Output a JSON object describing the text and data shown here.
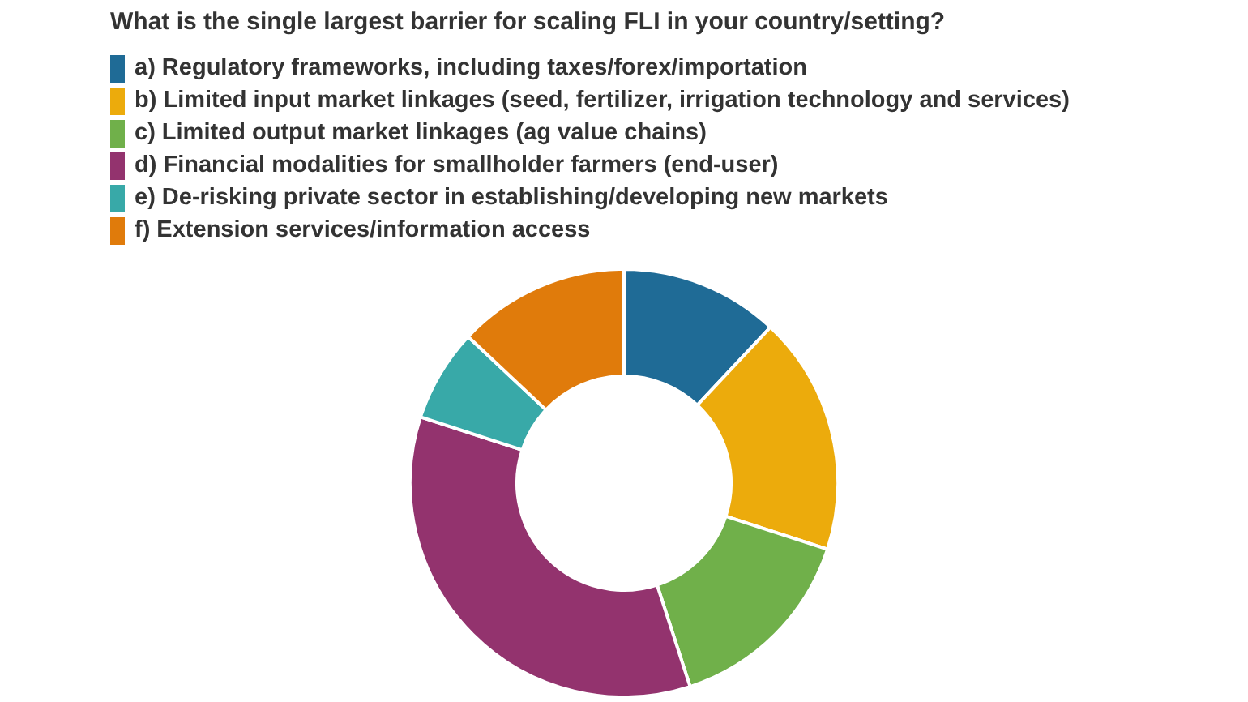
{
  "chart_data": {
    "type": "donut",
    "title": "What is the single largest barrier for scaling FLI in your country/setting?",
    "categories": [
      "a) Regulatory frameworks, including taxes/forex/importation",
      "b) Limited input market linkages (seed, fertilizer, irrigation technology and services)",
      "c) Limited output market linkages (ag value chains)",
      "d) Financial modalities for smallholder farmers (end-user)",
      "e) De-risking private sector in establishing/developing new markets",
      "f) Extension services/information access"
    ],
    "values": [
      12,
      18,
      15,
      35,
      7,
      13
    ],
    "colors": [
      "#1f6b96",
      "#ecab0c",
      "#70b04a",
      "#93336e",
      "#38a9a8",
      "#e07b0b"
    ],
    "legend": "top left"
  }
}
